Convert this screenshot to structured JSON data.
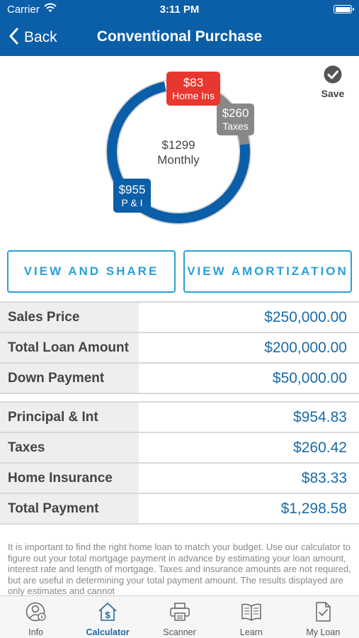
{
  "status_bar": {
    "carrier": "Carrier",
    "time": "3:11 PM"
  },
  "nav": {
    "back_label": "Back",
    "title": "Conventional Purchase"
  },
  "summary": {
    "center_amount": "$1299",
    "center_label": "Monthly",
    "home_ins_value": "$83",
    "home_ins_label": "Home Ins",
    "taxes_value": "$260",
    "taxes_label": "Taxes",
    "pi_value": "$955",
    "pi_label": "P & I"
  },
  "chart_data": {
    "type": "pie",
    "style": "donut",
    "center_text": [
      "$1299",
      "Monthly"
    ],
    "slices": [
      {
        "label": "P & I",
        "value": 955,
        "color": "#0b5ea8"
      },
      {
        "label": "Taxes",
        "value": 260,
        "color": "#888888"
      },
      {
        "label": "Home Ins",
        "value": 83,
        "color": "#ffffff"
      }
    ]
  },
  "save_label": "Save",
  "buttons": {
    "view_share": "VIEW AND SHARE",
    "view_amortization": "VIEW AMORTIZATION"
  },
  "loan_table": [
    {
      "label": "Sales Price",
      "value": "$250,000.00"
    },
    {
      "label": "Total Loan Amount",
      "value": "$200,000.00"
    },
    {
      "label": "Down Payment",
      "value": "$50,000.00"
    }
  ],
  "payment_table": [
    {
      "label": "Principal & Int",
      "value": "$954.83"
    },
    {
      "label": "Taxes",
      "value": "$260.42"
    },
    {
      "label": "Home Insurance",
      "value": "$83.33"
    },
    {
      "label": "Total Payment",
      "value": "$1,298.58"
    }
  ],
  "disclaimer": "It is important to find the right home loan to match your budget. Use our calculator to figure out your total mortgage payment in advance by estimating your loan amount, interest rate and length of mortgage. Taxes and insurance amounts are not required, but are useful in determining your total payment amount.  The results displayed are only estimates and cannot",
  "tabs": [
    {
      "label": "Info",
      "icon": "person-info-icon"
    },
    {
      "label": "Calculator",
      "icon": "house-dollar-icon"
    },
    {
      "label": "Scanner",
      "icon": "printer-icon"
    },
    {
      "label": "Learn",
      "icon": "open-book-icon"
    },
    {
      "label": "My Loan",
      "icon": "document-check-icon"
    }
  ],
  "colors": {
    "brand_blue": "#0b5ea8",
    "accent": "#2a9fd8",
    "home_ins": "#e8372f",
    "taxes": "#888888",
    "value_blue": "#1a6aa8"
  }
}
